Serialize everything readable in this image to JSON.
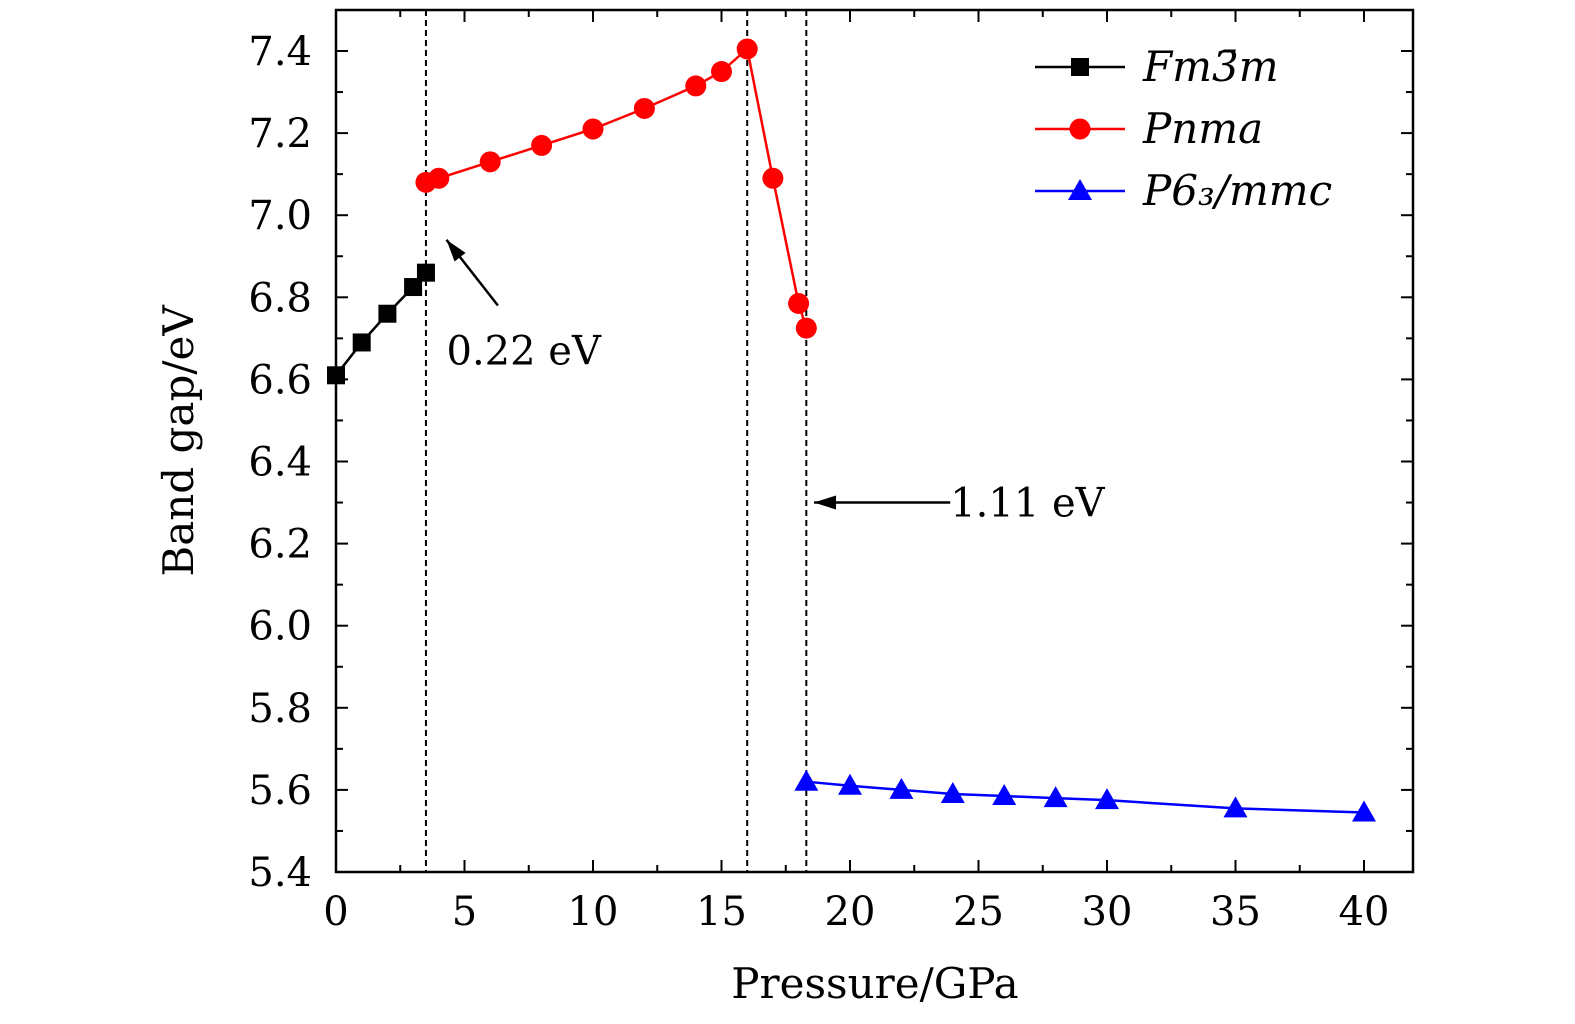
{
  "chart_data": {
    "type": "line",
    "xlabel": "Pressure/GPa",
    "ylabel": "Band gap/eV",
    "xlim": [
      0,
      42
    ],
    "ylim": [
      5.4,
      7.5
    ],
    "x_ticks": [
      "0",
      "5",
      "10",
      "15",
      "20",
      "25",
      "30",
      "35",
      "40"
    ],
    "y_ticks": [
      "5.4",
      "5.6",
      "5.8",
      "6.0",
      "6.2",
      "6.4",
      "6.6",
      "6.8",
      "7.0",
      "7.2",
      "7.4"
    ],
    "grid": false,
    "legend_position": "top-right",
    "series": [
      {
        "name": "Fm3̄m",
        "color": "#000000",
        "marker": "square",
        "x": [
          0,
          1,
          2,
          3,
          3.5
        ],
        "y": [
          6.61,
          6.69,
          6.76,
          6.825,
          6.86
        ]
      },
      {
        "name": "Pnma",
        "color": "#ff0000",
        "marker": "circle",
        "x": [
          3.5,
          4,
          6,
          8,
          10,
          12,
          14,
          15,
          16,
          17,
          18,
          18.3
        ],
        "y": [
          7.08,
          7.09,
          7.13,
          7.17,
          7.21,
          7.26,
          7.315,
          7.35,
          7.405,
          7.09,
          6.785,
          6.725
        ]
      },
      {
        "name": "P6₃/mmc",
        "color": "#0000ff",
        "marker": "triangle",
        "x": [
          18.3,
          20,
          22,
          24,
          26,
          28,
          30,
          35,
          40
        ],
        "y": [
          5.62,
          5.61,
          5.6,
          5.59,
          5.585,
          5.58,
          5.575,
          5.555,
          5.545
        ]
      }
    ],
    "vlines": [
      3.5,
      16,
      18.3
    ],
    "annotations": [
      {
        "text": "0.22 eV",
        "arrow_from": [
          6.3,
          6.78
        ],
        "arrow_to": [
          4.3,
          6.94
        ],
        "text_at": [
          4.3,
          6.67
        ]
      },
      {
        "text": "1.11 eV",
        "arrow_from": [
          23.9,
          6.3
        ],
        "arrow_to": [
          18.6,
          6.3
        ],
        "text_at": [
          23.9,
          6.3
        ]
      }
    ]
  }
}
